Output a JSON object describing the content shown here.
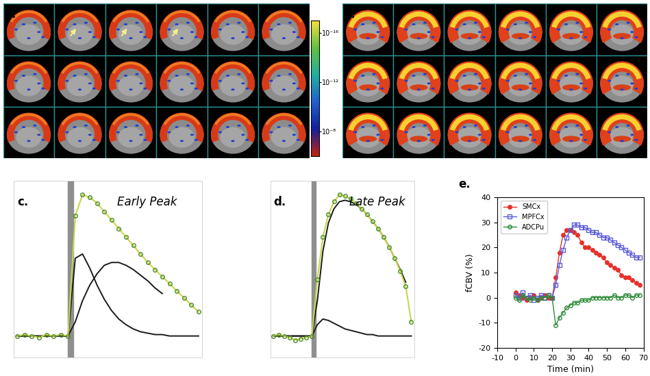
{
  "images": [
    {
      "label": "a."
    },
    {
      "label": "b."
    }
  ],
  "colorbar": {
    "range": [
      1e-06,
      1e-17
    ],
    "log": true,
    "ticks": [
      {
        "value": 1e-16,
        "label": "10⁻¹⁶"
      },
      {
        "value": 1e-12,
        "label": "10⁻¹²"
      },
      {
        "value": 1e-08,
        "label": "10⁻⁸"
      }
    ]
  },
  "chart_data": [
    {
      "type": "line",
      "label": "c.",
      "annotation": "Early Peak",
      "tick_labels": false,
      "legend": false,
      "xlim": [
        -2,
        102
      ],
      "ylim": [
        -15,
        110
      ],
      "stimulus": [
        28,
        31
      ],
      "x": [
        0,
        4,
        8,
        12,
        16,
        20,
        24,
        28,
        32,
        36,
        40,
        44,
        48,
        52,
        56,
        60,
        64,
        68,
        72,
        76,
        80,
        84,
        88,
        92,
        96,
        100
      ],
      "series": [
        {
          "color": "#c9d64a",
          "marker": "o",
          "values": [
            0,
            1,
            0,
            -1,
            1,
            0,
            1,
            0,
            85,
            100,
            98,
            94,
            88,
            82,
            76,
            70,
            64,
            58,
            52,
            47,
            42,
            37,
            32,
            27,
            22,
            17
          ]
        },
        {
          "color": "#1a1a1a",
          "marker": "none",
          "values": [
            0,
            0,
            0,
            0,
            0,
            0,
            0,
            0,
            55,
            58,
            48,
            36,
            26,
            18,
            12,
            8,
            5,
            3,
            2,
            1,
            1,
            0,
            0,
            0,
            0,
            0
          ]
        },
        {
          "color": "#1a1a1a",
          "marker": "none",
          "values": [
            0,
            0,
            0,
            0,
            0,
            0,
            0,
            0,
            10,
            25,
            36,
            44,
            50,
            52,
            52,
            50,
            47,
            43,
            39,
            34,
            30,
            null,
            null,
            null,
            null,
            null
          ]
        }
      ]
    },
    {
      "type": "line",
      "label": "d.",
      "annotation": "Late Peak",
      "tick_labels": false,
      "legend": false,
      "xlim": [
        -2,
        102
      ],
      "ylim": [
        -15,
        110
      ],
      "stimulus": [
        28,
        31
      ],
      "x": [
        0,
        4,
        8,
        12,
        16,
        20,
        24,
        28,
        32,
        36,
        40,
        44,
        48,
        52,
        56,
        60,
        64,
        68,
        72,
        76,
        80,
        84,
        88,
        92,
        96,
        100
      ],
      "series": [
        {
          "color": "#c9d64a",
          "marker": "o",
          "values": [
            0,
            1,
            0,
            -1,
            -3,
            -2,
            -1,
            0,
            40,
            70,
            86,
            95,
            100,
            99,
            97,
            94,
            90,
            86,
            81,
            76,
            70,
            63,
            55,
            46,
            35,
            10
          ]
        },
        {
          "color": "#1a1a1a",
          "marker": "none",
          "values": [
            0,
            0,
            0,
            0,
            0,
            0,
            0,
            0,
            8,
            12,
            11,
            9,
            7,
            5,
            4,
            3,
            2,
            1,
            1,
            0,
            0,
            0,
            0,
            0,
            0,
            0
          ]
        },
        {
          "color": "#1a1a1a",
          "marker": "none",
          "values": [
            0,
            0,
            0,
            0,
            0,
            0,
            0,
            0,
            25,
            60,
            80,
            90,
            95,
            96,
            95,
            93,
            90,
            86,
            81,
            76,
            70,
            63,
            55,
            47,
            38,
            null
          ]
        }
      ]
    },
    {
      "type": "line",
      "label": "e.",
      "x_label": "Time (min)",
      "y_label": "fCBV (%)",
      "legend": "upper left",
      "xlim": [
        -10,
        70
      ],
      "xticks": [
        -10,
        0,
        10,
        20,
        30,
        40,
        50,
        60,
        70
      ],
      "ylim": [
        -20,
        40
      ],
      "yticks": [
        -20,
        -10,
        0,
        10,
        20,
        30,
        40
      ],
      "x": [
        0,
        2,
        4,
        6,
        8,
        10,
        12,
        14,
        16,
        18,
        20,
        22,
        24,
        26,
        28,
        30,
        32,
        34,
        36,
        38,
        40,
        42,
        44,
        46,
        48,
        50,
        52,
        54,
        56,
        58,
        60,
        62,
        64,
        66,
        68
      ],
      "series": [
        {
          "name": "SMCx",
          "color": "#e8302a",
          "marker": "filled_circle",
          "values": [
            2,
            1,
            0,
            -1,
            0,
            1,
            -1,
            0,
            1,
            0,
            0,
            8,
            18,
            25,
            27,
            27,
            26,
            25,
            22,
            20,
            20,
            19,
            18,
            17,
            16,
            14,
            13,
            12,
            11,
            9,
            8,
            8,
            7,
            6,
            5
          ]
        },
        {
          "name": "MPFCx",
          "color": "#5a5ad8",
          "marker": "open_square",
          "values": [
            1,
            0,
            2,
            0,
            1,
            -1,
            0,
            1,
            0,
            1,
            0,
            5,
            13,
            19,
            24,
            27,
            29,
            29,
            28,
            28,
            27,
            26,
            26,
            25,
            24,
            24,
            23,
            22,
            21,
            20,
            19,
            18,
            17,
            16,
            16
          ]
        },
        {
          "name": "ADCPu",
          "color": "#2e8b3a",
          "marker": "open_circle",
          "values": [
            0,
            -1,
            1,
            0,
            -1,
            0,
            -1,
            0,
            0,
            1,
            0,
            -11,
            -8,
            -6,
            -4,
            -3,
            -2,
            -2,
            -1,
            -1,
            -1,
            0,
            0,
            0,
            0,
            0,
            0,
            1,
            0,
            0,
            1,
            1,
            0,
            1,
            1
          ]
        }
      ]
    }
  ]
}
